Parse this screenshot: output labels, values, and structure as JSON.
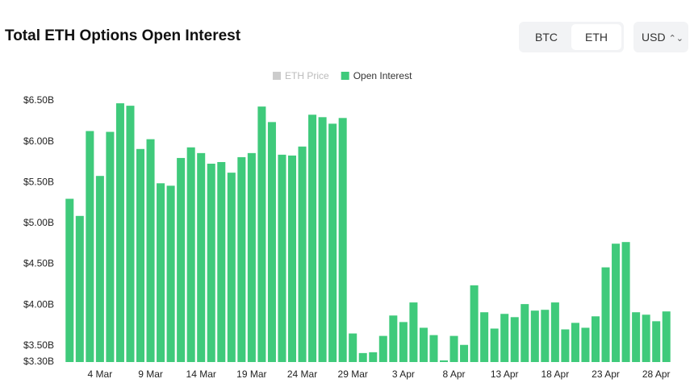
{
  "header": {
    "title": "Total ETH Options Open Interest"
  },
  "controls": {
    "assets": [
      "BTC",
      "ETH"
    ],
    "selected_asset": "ETH",
    "currency": "USD"
  },
  "chart_data": {
    "type": "bar",
    "categories": [
      null,
      null,
      null,
      "4 Mar",
      null,
      null,
      null,
      null,
      "9 Mar",
      null,
      null,
      null,
      null,
      "14 Mar",
      null,
      null,
      null,
      null,
      "19 Mar",
      null,
      null,
      null,
      null,
      "24 Mar",
      null,
      null,
      null,
      null,
      "29 Mar",
      null,
      null,
      null,
      null,
      "3 Apr",
      null,
      null,
      null,
      null,
      "8 Apr",
      null,
      null,
      null,
      null,
      "13 Apr",
      null,
      null,
      null,
      null,
      "18 Apr",
      null,
      null,
      null,
      null,
      "23 Apr",
      null,
      null,
      null,
      null,
      "28 Apr",
      null
    ],
    "series": [
      {
        "name": "ETH Price",
        "color": "#cccccc",
        "hidden": true
      },
      {
        "name": "Open Interest",
        "color": "#3fca7b",
        "values": [
          5.3,
          5.09,
          6.13,
          5.58,
          6.12,
          6.47,
          6.44,
          5.91,
          6.03,
          5.49,
          5.46,
          5.8,
          5.93,
          5.86,
          5.73,
          5.75,
          5.62,
          5.81,
          5.86,
          6.43,
          6.24,
          5.84,
          5.83,
          5.94,
          6.33,
          6.3,
          6.22,
          6.29,
          3.65,
          3.41,
          3.42,
          3.62,
          3.87,
          3.79,
          4.03,
          3.72,
          3.63,
          3.32,
          3.62,
          3.51,
          4.24,
          3.91,
          3.71,
          3.89,
          3.85,
          4.01,
          3.93,
          3.94,
          4.03,
          3.7,
          3.78,
          3.72,
          3.86,
          4.46,
          4.75,
          4.77,
          3.91,
          3.88,
          3.8,
          3.92
        ]
      }
    ],
    "ylim": [
      3.3,
      6.55
    ],
    "yticks": [
      {
        "value": 3.3,
        "label": "$3.30B"
      },
      {
        "value": 3.5,
        "label": "$3.50B"
      },
      {
        "value": 4,
        "label": "$4.00B"
      },
      {
        "value": 4.5,
        "label": "$4.50B"
      },
      {
        "value": 5,
        "label": "$5.00B"
      },
      {
        "value": 5.5,
        "label": "$5.50B"
      },
      {
        "value": 6,
        "label": "$6.00B"
      },
      {
        "value": 6.5,
        "label": "$6.50B"
      }
    ],
    "grid": false,
    "legend": "top"
  }
}
